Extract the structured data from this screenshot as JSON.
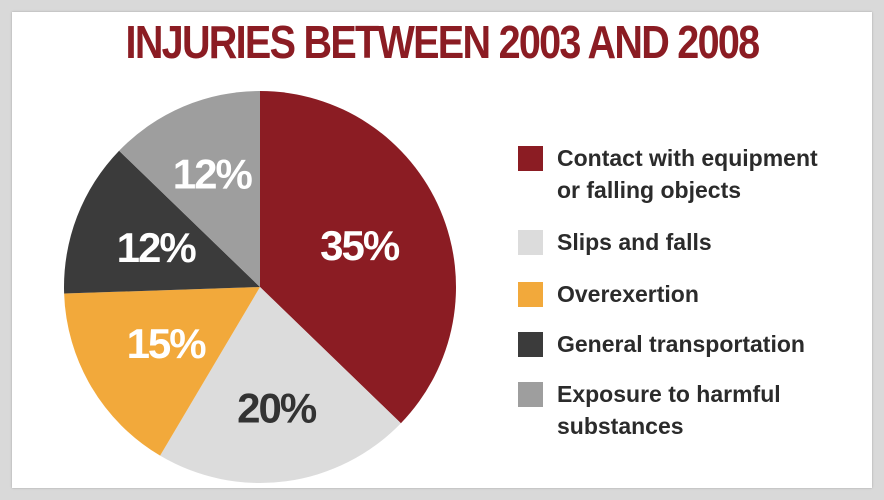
{
  "chart_data": {
    "type": "pie",
    "title": "INJURIES BETWEEN 2003 AND 2008",
    "categories": [
      "Contact with equipment or falling objects",
      "Slips and falls",
      "Overexertion",
      "General transportation",
      "Exposure to harmful substances"
    ],
    "values": [
      35,
      20,
      15,
      12,
      12
    ],
    "labels": [
      "35%",
      "20%",
      "15%",
      "12%",
      "12%"
    ],
    "legend_labels": [
      "Contact with equipment\nor falling objects",
      "Slips and falls",
      "Overexertion",
      "General transportation",
      "Exposure to harmful\nsubstances"
    ],
    "colors": [
      "#8b1c23",
      "#dcdcdc",
      "#f2a93b",
      "#3b3b3b",
      "#9e9e9e"
    ],
    "label_colors": [
      "#ffffff",
      "#333333",
      "#ffffff",
      "#ffffff",
      "#ffffff"
    ],
    "title_color": "#8b1c23",
    "legend_position": "right"
  }
}
